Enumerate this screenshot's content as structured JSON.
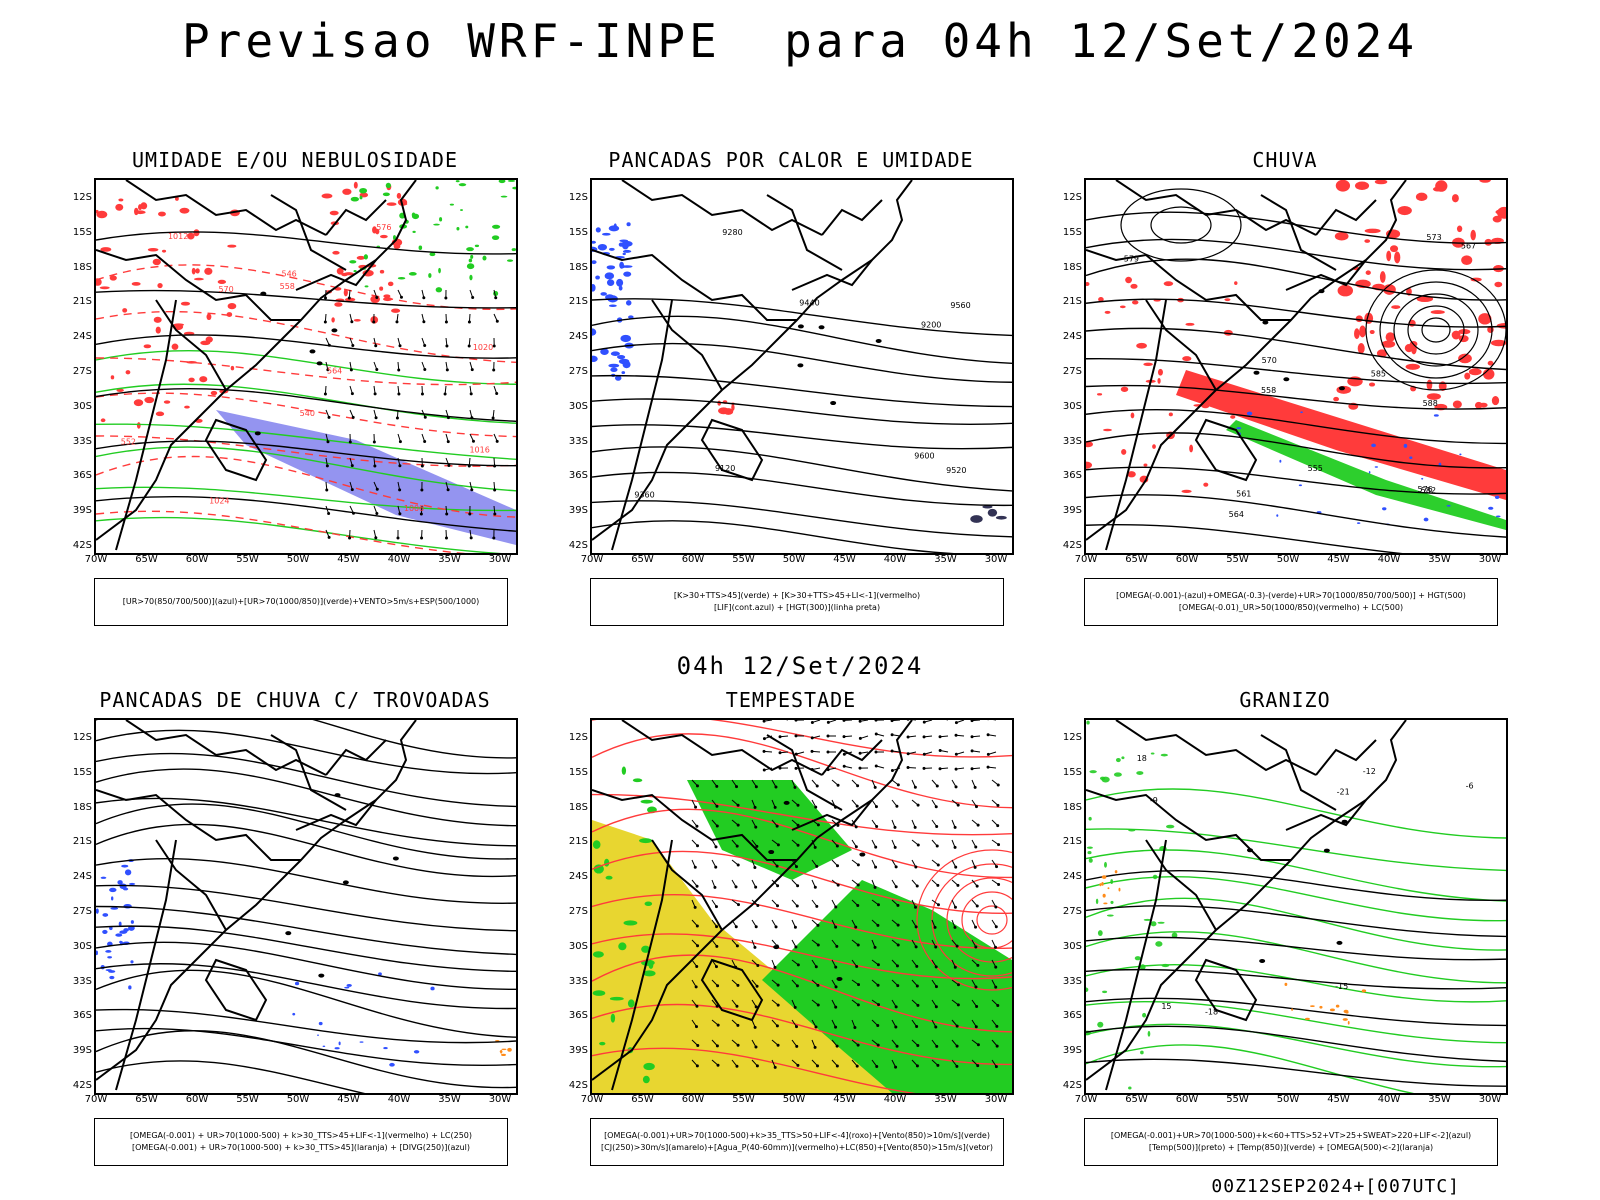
{
  "title": "Previsao WRF-INPE  para 04h 12/Set/2024",
  "mid_date": "04h 12/Set/2024",
  "footer": "00Z12SEP2024+[007UTC]",
  "axes": {
    "lat_labels": [
      "12S",
      "15S",
      "18S",
      "21S",
      "24S",
      "27S",
      "30S",
      "33S",
      "36S",
      "39S",
      "42S"
    ],
    "lon_labels": [
      "70W",
      "65W",
      "60W",
      "55W",
      "50W",
      "45W",
      "40W",
      "35W",
      "30W"
    ]
  },
  "colors": {
    "red": "#ff3b3b",
    "green": "#22cc22",
    "blue": "#3050ff",
    "yellow": "#e8d630",
    "orange": "#ff8c1a",
    "lavender": "#8888ee",
    "black": "#000000"
  },
  "panels": [
    {
      "id": "umidade",
      "title": "UMIDADE E/OU NEBULOSIDADE",
      "legend": [
        "[UR>70(850/700/500)](azul)+[UR>70(1000/850)](verde)+VENTO>5m/s+ESP(500/1000)"
      ],
      "contour_labels": [
        "1008",
        "1012",
        "1016",
        "1020",
        "1024",
        "576",
        "570",
        "564",
        "558",
        "552",
        "546",
        "540"
      ]
    },
    {
      "id": "pancadas-calor",
      "title": "PANCADAS POR CALOR E UMIDADE",
      "legend": [
        "[K>30+TTS>45](verde) + [K>30+TTS>45+LI<-1](vermelho)",
        "[LIF](cont.azul) + [HGT(300)](linha preta)"
      ],
      "contour_labels": [
        "9600",
        "9560",
        "9520",
        "9440",
        "9360",
        "9280",
        "9200",
        "9120"
      ]
    },
    {
      "id": "chuva",
      "title": "CHUVA",
      "legend": [
        "[OMEGA(-0.001)-(azul)+OMEGA(-0.3)-(verde)+UR>70(1000/850/700/500)] + HGT(500)",
        "[OMEGA(-0.01)_UR>50(1000/850)(vermelho) + LC(500)"
      ],
      "contour_labels": [
        "588",
        "585",
        "582",
        "579",
        "576",
        "573",
        "570",
        "567",
        "564",
        "561",
        "558",
        "555"
      ]
    },
    {
      "id": "trovoadas",
      "title": "PANCADAS DE CHUVA C/ TROVOADAS",
      "legend": [
        "[OMEGA(-0.001) + UR>70(1000-500) + k>30_TTS>45+LIF<-1](vermelho) + LC(250)",
        "[OMEGA(-0.001) + UR>70(1000-500) + k>30_TTS>45](laranja) + [DIVG(250)](azul)"
      ],
      "contour_labels": []
    },
    {
      "id": "tempestade",
      "title": "TEMPESTADE",
      "legend": [
        "[OMEGA(-0.001)+UR>70(1000-500)+k>35_TTS>50+LIF<-4](roxo)+[Vento(850)>10m/s](verde)",
        "[CJ(250)>30m/s](amarelo)+[Agua_P(40-60mm)](vermelho)+LC(850)+[Vento(850)>15m/s](vetor)"
      ],
      "contour_labels": []
    },
    {
      "id": "granizo",
      "title": "GRANIZO",
      "legend": [
        "[OMEGA(-0.001)+UR>70(1000-500)+k<60+TTS>52+VT>25+SWEAT>220+LIF<-2](azul)",
        "[Temp(500)](preto) + [Temp(850)](verde) + [OMEGA(500)<-2](laranja)"
      ],
      "contour_labels": [
        "-6",
        "-9",
        "-12",
        "-15",
        "-18",
        "-21",
        "15",
        "18"
      ]
    }
  ]
}
